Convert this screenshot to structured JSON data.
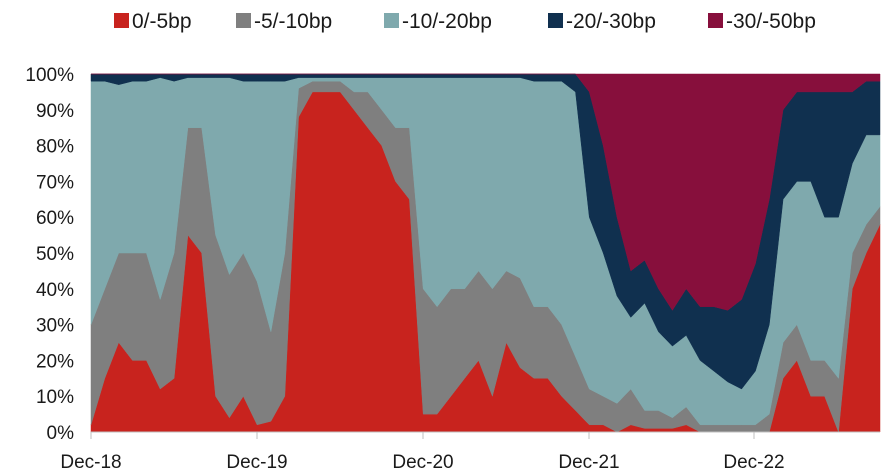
{
  "chart_data": {
    "type": "area",
    "stacked": "percent",
    "title": "",
    "xlabel": "",
    "ylabel": "",
    "ylim": [
      0,
      100
    ],
    "y_ticks": [
      "0%",
      "10%",
      "20%",
      "30%",
      "40%",
      "50%",
      "60%",
      "70%",
      "80%",
      "90%",
      "100%"
    ],
    "x_ticks": [
      "Dec-18",
      "Dec-19",
      "Dec-20",
      "Dec-21",
      "Dec-22"
    ],
    "legend_position": "top",
    "grid": false,
    "x": [
      "Dec-18",
      "Jan-19",
      "Feb-19",
      "Mar-19",
      "Apr-19",
      "May-19",
      "Jun-19",
      "Jul-19",
      "Aug-19",
      "Sep-19",
      "Oct-19",
      "Nov-19",
      "Dec-19",
      "Jan-20",
      "Feb-20",
      "Mar-20",
      "Apr-20",
      "May-20",
      "Jun-20",
      "Jul-20",
      "Aug-20",
      "Sep-20",
      "Oct-20",
      "Nov-20",
      "Dec-20",
      "Jan-21",
      "Feb-21",
      "Mar-21",
      "Apr-21",
      "May-21",
      "Jun-21",
      "Jul-21",
      "Aug-21",
      "Sep-21",
      "Oct-21",
      "Nov-21",
      "Dec-21",
      "Jan-22",
      "Feb-22",
      "Mar-22",
      "Apr-22",
      "May-22",
      "Jun-22",
      "Jul-22",
      "Aug-22",
      "Sep-22",
      "Oct-22",
      "Nov-22",
      "Dec-22",
      "Jan-23",
      "Feb-23",
      "Mar-23",
      "Apr-23",
      "May-23",
      "Jun-23",
      "Jul-23",
      "Aug-23",
      "Sep-23"
    ],
    "series": [
      {
        "name": "0/-5bp",
        "color": "#c8231e",
        "values": [
          2,
          15,
          25,
          20,
          20,
          12,
          15,
          55,
          50,
          10,
          4,
          10,
          2,
          3,
          10,
          88,
          95,
          95,
          95,
          90,
          85,
          80,
          70,
          65,
          5,
          5,
          10,
          15,
          20,
          10,
          25,
          18,
          15,
          15,
          10,
          6,
          2,
          2,
          0,
          2,
          1,
          1,
          1,
          2,
          0,
          0,
          0,
          0,
          0,
          0,
          15,
          20,
          10,
          10,
          0,
          40,
          50,
          58
        ]
      },
      {
        "name": "-5/-10bp",
        "color": "#7f7f7f",
        "values": [
          28,
          25,
          25,
          30,
          30,
          25,
          35,
          30,
          35,
          45,
          40,
          40,
          40,
          25,
          40,
          8,
          3,
          3,
          3,
          5,
          10,
          10,
          15,
          20,
          35,
          30,
          30,
          25,
          25,
          30,
          20,
          25,
          20,
          20,
          20,
          15,
          10,
          8,
          8,
          10,
          5,
          5,
          3,
          5,
          2,
          2,
          2,
          2,
          2,
          5,
          10,
          10,
          10,
          10,
          15,
          10,
          8,
          5
        ]
      },
      {
        "name": "-10/-20bp",
        "color": "#7fa9ad",
        "values": [
          68,
          58,
          47,
          48,
          48,
          62,
          48,
          14,
          14,
          44,
          55,
          48,
          56,
          70,
          48,
          3,
          1,
          1,
          1,
          4,
          4,
          9,
          14,
          14,
          59,
          64,
          59,
          59,
          54,
          59,
          54,
          56,
          63,
          63,
          68,
          74,
          48,
          40,
          30,
          20,
          30,
          22,
          20,
          20,
          18,
          15,
          12,
          10,
          15,
          25,
          40,
          40,
          50,
          40,
          45,
          25,
          25,
          20
        ]
      },
      {
        "name": "-20/-30bp",
        "color": "#10304f",
        "values": [
          2,
          2,
          3,
          2,
          2,
          1,
          2,
          1,
          1,
          1,
          1,
          2,
          2,
          2,
          2,
          1,
          1,
          1,
          1,
          1,
          1,
          1,
          1,
          1,
          1,
          1,
          1,
          1,
          1,
          1,
          1,
          1,
          2,
          2,
          2,
          5,
          35,
          30,
          22,
          13,
          12,
          12,
          10,
          13,
          15,
          18,
          20,
          25,
          30,
          35,
          25,
          25,
          25,
          35,
          35,
          20,
          15,
          15
        ]
      },
      {
        "name": "-30/-50bp",
        "color": "#870f3c",
        "values": [
          0,
          0,
          0,
          0,
          0,
          0,
          0,
          0,
          0,
          0,
          0,
          0,
          0,
          0,
          0,
          0,
          0,
          0,
          0,
          0,
          0,
          0,
          0,
          0,
          0,
          0,
          0,
          0,
          0,
          0,
          0,
          0,
          0,
          0,
          0,
          0,
          5,
          20,
          40,
          55,
          52,
          60,
          66,
          60,
          65,
          65,
          66,
          63,
          53,
          35,
          10,
          5,
          5,
          5,
          5,
          5,
          2,
          2
        ]
      }
    ]
  }
}
